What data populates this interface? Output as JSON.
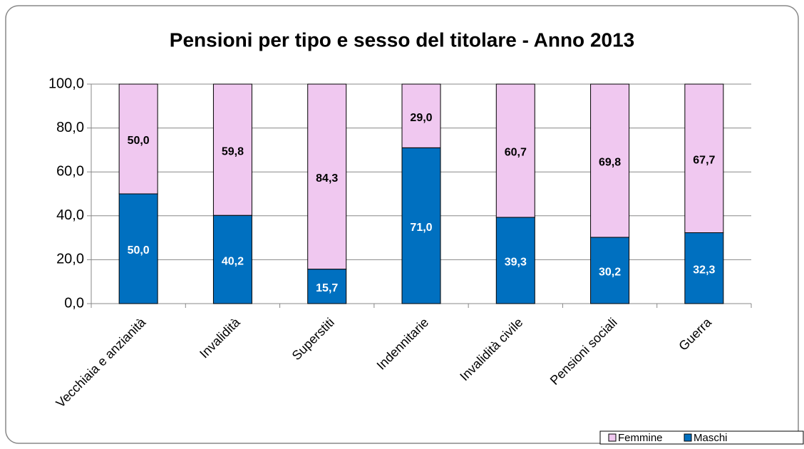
{
  "chart_data": {
    "type": "stacked_bar",
    "title": "Pensioni per tipo e sesso del titolare - Anno 2013",
    "categories": [
      "Vecchiaia e anzianità",
      "Invalidità",
      "Superstiti",
      "Indennitarie",
      "Invalidità civile",
      "Pensioni sociali",
      "Guerra"
    ],
    "series": [
      {
        "name": "Maschi",
        "color": "#0070c0",
        "values": [
          50.0,
          40.2,
          15.7,
          71.0,
          39.3,
          30.2,
          32.3
        ],
        "value_labels": [
          "50,0",
          "40,2",
          "15,7",
          "71,0",
          "39,3",
          "30,2",
          "32,3"
        ]
      },
      {
        "name": "Femmine",
        "color": "#f0c8f0",
        "values": [
          50.0,
          59.8,
          84.3,
          29.0,
          60.7,
          69.8,
          67.7
        ],
        "value_labels": [
          "50,0",
          "59,8",
          "84,3",
          "29,0",
          "60,7",
          "69,8",
          "67,7"
        ]
      }
    ],
    "ylim": [
      0,
      100
    ],
    "yticks": [
      {
        "value": 0,
        "label": "0,0"
      },
      {
        "value": 20,
        "label": "20,0"
      },
      {
        "value": 40,
        "label": "40,0"
      },
      {
        "value": 60,
        "label": "60,0"
      },
      {
        "value": 80,
        "label": "80,0"
      },
      {
        "value": 100,
        "label": "100,0"
      }
    ],
    "grid": true,
    "legend": "bottom-right"
  }
}
